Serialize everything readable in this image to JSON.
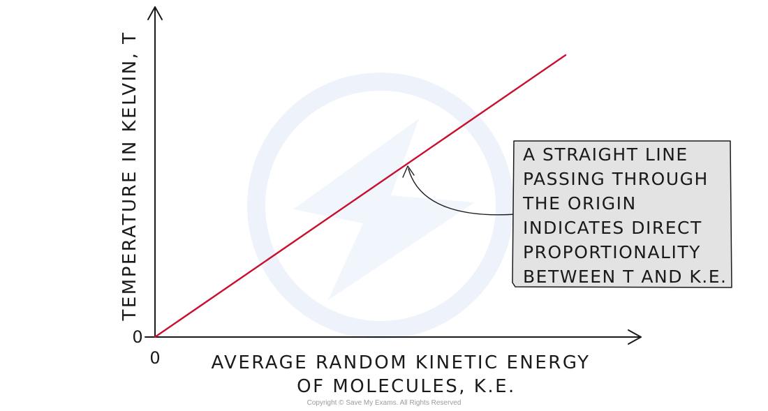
{
  "chart_data": {
    "type": "line",
    "xlabel_lines": [
      "AVERAGE  RANDOM  KINETIC  ENERGY",
      "OF  MOLECULES, K.E."
    ],
    "ylabel": "TEMPERATURE  IN  KELVIN,  T",
    "x_tick_labels": [
      "0"
    ],
    "y_tick_labels": [
      "0"
    ],
    "series": [
      {
        "x": [
          0,
          1
        ],
        "y": [
          0,
          1
        ],
        "color": "#c8102e"
      }
    ],
    "annotation": {
      "lines": [
        "A STRAIGHT  LINE",
        "PASSING  THROUGH",
        "THE  ORIGIN",
        "INDICATES  DIRECT",
        "PROPORTIONALITY",
        "BETWEEN  T AND K.E."
      ],
      "points_to_x": 0.612
    },
    "grid": false,
    "legend": "none"
  },
  "footer": {
    "copyright": "Copyright © Save My Exams. All Rights Reserved"
  },
  "colors": {
    "line": "#c8102e",
    "axis": "#1a1a1a",
    "callout_fill": "#e3e3e3",
    "watermark": "#eaf1fb"
  }
}
